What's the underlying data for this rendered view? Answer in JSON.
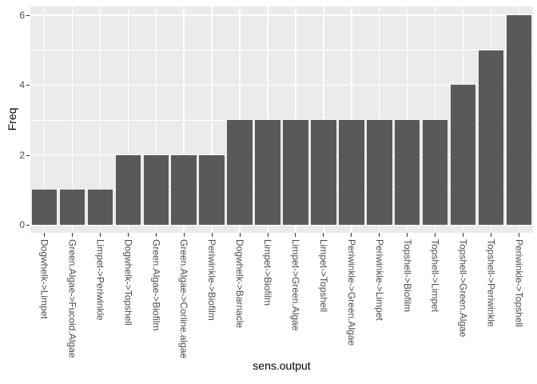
{
  "chart_data": {
    "type": "bar",
    "title": "",
    "xlabel": "sens.output",
    "ylabel": "Freq",
    "categories": [
      "Dogwhelk->Limpet",
      "Green.Algae->Fucoid.Algae",
      "Limpet->Periwinkle",
      "Dogwhelk->Topshell",
      "Green.Algae->Biofilm",
      "Green.Algae->Corline.algae",
      "Periwinkle->Biofilm",
      "Dogwhelk->Barnacle",
      "Limpet->Biofilm",
      "Limpet->Green.Algae",
      "Limpet->Topshell",
      "Periwinkle->Green.Algae",
      "Periwinkle->Limpet",
      "Topshell->Biofilm",
      "Topshell->Limpet",
      "Topshell->Green.Algae",
      "Topshell->Periwinkle",
      "Periwinkle->Topshell"
    ],
    "values": [
      1,
      1,
      1,
      2,
      2,
      2,
      2,
      3,
      3,
      3,
      3,
      3,
      3,
      3,
      3,
      4,
      5,
      6
    ],
    "y_ticks": [
      0,
      2,
      4,
      6
    ],
    "y_minor_ticks": [
      1,
      3,
      5
    ],
    "ylim": [
      -0.25,
      6.25
    ],
    "grid": true,
    "legend_position": "none",
    "style": {
      "panel_bg": "#EBEBEB",
      "grid_color": "#FFFFFF",
      "bar_fill": "#595959",
      "tick_label_color": "#4D4D4D",
      "tick_mark_color": "#333333",
      "axis_title_color": "#000000",
      "background": "#FFFFFF"
    }
  }
}
